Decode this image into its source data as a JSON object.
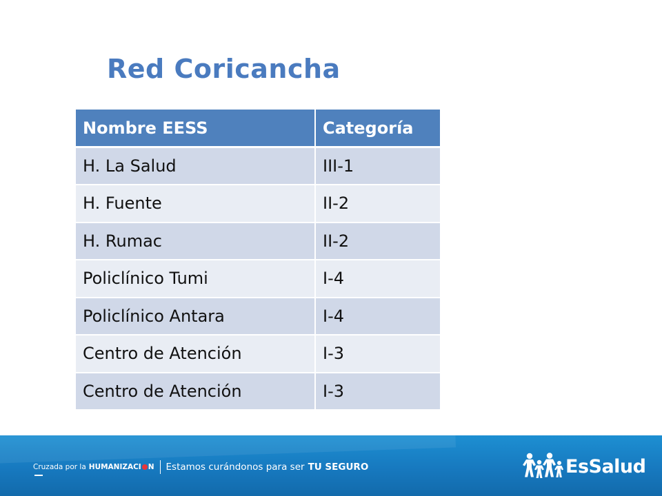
{
  "slide": {
    "title": "Red Coricancha"
  },
  "table": {
    "headers": [
      "Nombre EESS",
      "Categoría"
    ],
    "rows": [
      [
        "H. La Salud",
        "III-1"
      ],
      [
        "H. Fuente",
        "II-2"
      ],
      [
        "H. Rumac",
        "II-2"
      ],
      [
        "Policlínico Tumi",
        "I-4"
      ],
      [
        "Policlínico Antara",
        "I-4"
      ],
      [
        "Centro de Atención",
        "I-3"
      ],
      [
        "Centro de Atención",
        "I-3"
      ]
    ]
  },
  "footer": {
    "slogan_prefix": "Cruzada por la",
    "slogan_humaniza": "HUMANIZACI",
    "slogan_n": "N",
    "slogan_tagline": "Estamos curándonos para ser",
    "slogan_bold": "TU SEGURO",
    "brand_name": "EsSalud",
    "accent_color": "#e8363a"
  }
}
